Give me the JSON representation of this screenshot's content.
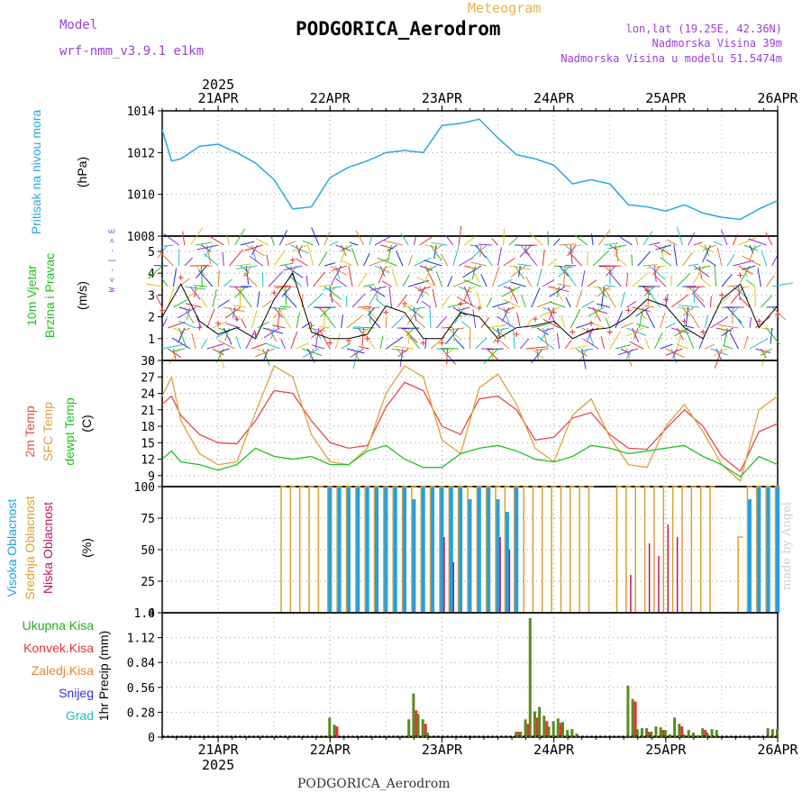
{
  "header": {
    "model_label": "Model",
    "model_name": "wrf-nmm_v3.9.1 e1km",
    "meteogram": "Meteogram",
    "station": "PODGORICA_Aerodrom",
    "lonlat": "lon,lat (19.25E, 42.36N)",
    "altitude": "Nadmorska Visina 39m",
    "model_altitude": "Nadmorska Visina u modelu 51.5474m"
  },
  "footer": {
    "station": "PODGORICA_Aerodrom",
    "credit": "made by Angel"
  },
  "time_axis": {
    "year": "2025",
    "days": [
      "21APR",
      "22APR",
      "23APR",
      "24APR",
      "25APR",
      "26APR"
    ],
    "start_hour": 12,
    "end_hour": 144
  },
  "panel_labels": {
    "pressure": {
      "title": "Pritisak na nivou mora",
      "unit": "(hPa)"
    },
    "wind": {
      "title1": "10m Vjetar",
      "title2": "Brzina i Pravac",
      "unit": "(m/s)",
      "compass": "W  < - | - >  E"
    },
    "temp": {
      "t1": "2m Temp",
      "t2": "SFC Temp",
      "t3": "dewpt Temp",
      "unit": "(C)"
    },
    "cloud": {
      "c1": "Visoka Oblacnost",
      "c2": "Srednja Oblacnost",
      "c3": "Niska Oblacnost",
      "unit": "(%)"
    },
    "precip": {
      "title": "1hr Precip (mm)",
      "legend": [
        "Ukupna Kisa",
        "Konvek.Kisa",
        "Zaledj.Kisa",
        "Snijeg",
        "Grad"
      ]
    }
  },
  "colors": {
    "pressure": "#28a8e0",
    "wind_speed": "#000000",
    "wind_gust": "#e83030",
    "t2m": "#e84848",
    "tsfc": "#e0a040",
    "dewpt": "#20c020",
    "cloud_high": "#20a0e8",
    "cloud_mid": "#d8a030",
    "cloud_low": "#c01060",
    "precip_total": "#5a8a20",
    "precip_conv": "#e83030",
    "leg_total": "#20b020",
    "leg_conv": "#e83030",
    "leg_frz": "#f08030",
    "leg_snow": "#3030e0",
    "leg_grad": "#20c0c0"
  },
  "chart_data": [
    {
      "type": "line",
      "title": "",
      "ylabel": "Pritisak na nivou mora (hPa)",
      "ylim": [
        1008,
        1014
      ],
      "yticks": [
        1008,
        1010,
        1012,
        1014
      ],
      "x_hours": [
        12,
        14,
        16,
        18,
        20,
        24,
        28,
        32,
        36,
        40,
        44,
        48,
        52,
        56,
        60,
        64,
        68,
        72,
        76,
        80,
        84,
        88,
        92,
        96,
        100,
        104,
        108,
        112,
        116,
        120,
        124,
        128,
        132,
        136,
        140,
        144
      ],
      "values": [
        1013.1,
        1011.6,
        1011.7,
        1012.0,
        1012.3,
        1012.4,
        1012.0,
        1011.5,
        1010.7,
        1009.3,
        1009.4,
        1010.8,
        1011.3,
        1011.6,
        1012.0,
        1012.1,
        1012.0,
        1013.3,
        1013.4,
        1013.6,
        1012.7,
        1011.9,
        1011.7,
        1011.4,
        1010.5,
        1010.7,
        1010.5,
        1009.5,
        1009.4,
        1009.2,
        1009.5,
        1009.1,
        1008.9,
        1008.8,
        1009.3,
        1009.7
      ]
    },
    {
      "type": "line",
      "title": "",
      "ylabel": "10m Vjetar Brzina i Pravac (m/s)",
      "ylim": [
        0,
        5.7
      ],
      "yticks": [
        0,
        1,
        2,
        3,
        4,
        5
      ],
      "x_hours": [
        12,
        16,
        20,
        24,
        28,
        32,
        36,
        40,
        44,
        48,
        52,
        56,
        60,
        64,
        68,
        72,
        76,
        80,
        84,
        88,
        92,
        96,
        100,
        104,
        108,
        112,
        116,
        120,
        124,
        128,
        132,
        136,
        140,
        144
      ],
      "series": [
        {
          "name": "speed",
          "values": [
            2.0,
            3.5,
            1.8,
            1.2,
            1.5,
            1.0,
            2.8,
            4.0,
            1.3,
            1.0,
            1.0,
            1.2,
            2.5,
            2.2,
            1.0,
            1.0,
            2.2,
            2.0,
            1.0,
            1.5,
            1.6,
            1.8,
            1.0,
            1.4,
            1.5,
            2.0,
            2.8,
            2.5,
            1.5,
            1.0,
            2.8,
            3.5,
            1.5,
            2.5
          ]
        },
        {
          "name": "gust",
          "values": [
            2.3,
            3.8,
            1.5,
            1.7,
            1.9,
            1.2,
            3.1,
            4.6,
            1.6,
            0.8,
            0.9,
            1.0,
            2.2,
            2.6,
            0.8,
            0.8,
            2.6,
            2.4,
            0.9,
            1.2,
            1.9,
            2.2,
            1.3,
            1.7,
            1.3,
            2.3,
            3.2,
            2.8,
            1.8,
            1.3,
            3.0,
            3.9,
            1.8,
            2.1
          ]
        }
      ],
      "arrow_colors": [
        "#2030e0",
        "#20c020",
        "#e0c020",
        "#e83030",
        "#9030d0",
        "#20c0c0",
        "#e08030"
      ]
    },
    {
      "type": "line",
      "title": "",
      "ylabel": "2m Temp / SFC Temp / dewpt Temp (C)",
      "ylim": [
        7,
        30
      ],
      "yticks": [
        9,
        12,
        15,
        18,
        21,
        24,
        27,
        30
      ],
      "x_hours": [
        12,
        14,
        16,
        20,
        24,
        28,
        32,
        36,
        40,
        44,
        48,
        52,
        56,
        60,
        64,
        68,
        72,
        76,
        80,
        84,
        88,
        92,
        96,
        100,
        104,
        108,
        112,
        116,
        120,
        124,
        128,
        132,
        136,
        140,
        144
      ],
      "series": [
        {
          "name": "2m Temp",
          "values": [
            22.0,
            23.5,
            20.0,
            16.5,
            15.0,
            14.8,
            19.0,
            24.5,
            24.0,
            19.0,
            15.0,
            14.0,
            14.5,
            21.5,
            26.0,
            24.5,
            18.0,
            16.5,
            23.0,
            23.5,
            21.0,
            15.5,
            16.0,
            19.5,
            20.5,
            16.5,
            14.0,
            13.8,
            17.5,
            21.0,
            18.0,
            12.5,
            9.8,
            17.0,
            18.5
          ]
        },
        {
          "name": "SFC Temp",
          "values": [
            23.5,
            27.0,
            19.0,
            13.0,
            11.0,
            11.5,
            20.5,
            29.0,
            27.0,
            16.5,
            11.5,
            11.0,
            14.0,
            24.0,
            29.0,
            27.0,
            15.5,
            13.0,
            25.0,
            27.5,
            22.0,
            14.0,
            11.5,
            20.0,
            23.0,
            16.0,
            11.0,
            10.5,
            18.0,
            22.0,
            17.0,
            11.0,
            8.0,
            21.0,
            23.5
          ]
        },
        {
          "name": "dewpt Temp",
          "values": [
            12.0,
            13.5,
            11.5,
            11.0,
            10.0,
            11.0,
            14.0,
            12.5,
            12.0,
            12.5,
            11.0,
            11.0,
            13.5,
            14.5,
            12.0,
            10.5,
            10.5,
            13.0,
            14.0,
            14.5,
            13.5,
            12.0,
            11.5,
            12.5,
            14.5,
            14.0,
            13.0,
            13.5,
            14.0,
            14.5,
            12.5,
            11.0,
            8.8,
            12.5,
            11.0
          ]
        }
      ]
    },
    {
      "type": "bar",
      "title": "",
      "ylabel": "Visoka / Srednja / Niska Oblacnost (%)",
      "ylim": [
        0,
        100
      ],
      "yticks": [
        0,
        25,
        50,
        75,
        100
      ],
      "x_hours": [
        38,
        40,
        42,
        44,
        46,
        48,
        50,
        52,
        54,
        56,
        58,
        60,
        62,
        64,
        66,
        68,
        70,
        72,
        74,
        76,
        78,
        80,
        82,
        84,
        86,
        88,
        90,
        92,
        94,
        96,
        98,
        100,
        102,
        104,
        106,
        108,
        110,
        112,
        114,
        116,
        118,
        120,
        122,
        124,
        126,
        128,
        130,
        132,
        134,
        136,
        138,
        140,
        142,
        144
      ],
      "series": [
        {
          "name": "Visoka Oblacnost",
          "values": [
            0,
            0,
            0,
            0,
            0,
            100,
            100,
            100,
            100,
            100,
            100,
            100,
            100,
            100,
            90,
            100,
            100,
            100,
            100,
            100,
            90,
            100,
            100,
            90,
            80,
            100,
            0,
            0,
            0,
            0,
            0,
            0,
            0,
            0,
            0,
            0,
            0,
            0,
            0,
            0,
            0,
            0,
            0,
            0,
            0,
            0,
            0,
            0,
            0,
            0,
            90,
            100,
            100,
            100
          ]
        },
        {
          "name": "Srednja Oblacnost",
          "values": [
            100,
            100,
            100,
            100,
            100,
            100,
            100,
            100,
            100,
            100,
            100,
            100,
            100,
            100,
            100,
            100,
            100,
            100,
            100,
            100,
            100,
            100,
            100,
            100,
            100,
            100,
            100,
            100,
            100,
            100,
            100,
            100,
            100,
            100,
            0,
            0,
            100,
            100,
            100,
            100,
            100,
            100,
            100,
            100,
            100,
            100,
            100,
            0,
            0,
            60,
            100,
            100,
            100,
            100
          ]
        },
        {
          "name": "Niska Oblacnost",
          "values": [
            0,
            0,
            0,
            0,
            0,
            0,
            0,
            0,
            0,
            0,
            0,
            0,
            0,
            0,
            0,
            0,
            0,
            60,
            40,
            0,
            0,
            0,
            0,
            60,
            50,
            0,
            0,
            0,
            0,
            0,
            0,
            0,
            0,
            0,
            0,
            0,
            0,
            30,
            0,
            55,
            45,
            70,
            60,
            0,
            0,
            0,
            0,
            0,
            0,
            0,
            0,
            0,
            0,
            0
          ]
        }
      ]
    },
    {
      "type": "bar",
      "title": "",
      "ylabel": "1hr Precip (mm)",
      "ylim": [
        0,
        1.4
      ],
      "yticks": [
        0,
        0.28,
        0.56,
        0.84,
        1.12,
        1.4
      ],
      "x_hours": [
        48,
        49,
        65,
        66,
        67,
        68,
        69,
        70,
        88,
        89,
        90,
        91,
        92,
        93,
        94,
        95,
        96,
        97,
        98,
        99,
        100,
        101,
        112,
        113,
        114,
        115,
        116,
        117,
        118,
        119,
        120,
        121,
        122,
        123,
        124,
        125,
        126,
        127,
        128,
        129,
        130,
        131,
        132,
        133,
        142,
        143,
        144
      ],
      "series": [
        {
          "name": "Ukupna Kisa",
          "values": [
            0.22,
            0.14,
            0.2,
            0.49,
            0.26,
            0.2,
            0.05,
            0.0,
            0.06,
            0.06,
            0.2,
            1.34,
            0.29,
            0.34,
            0.24,
            0.12,
            0.18,
            0.21,
            0.17,
            0.08,
            0.09,
            0.04,
            0.58,
            0.43,
            0.09,
            0.1,
            0.1,
            0.06,
            0.12,
            0.11,
            0.08,
            0.03,
            0.22,
            0.15,
            0.03,
            0.08,
            0.05,
            0.02,
            0.1,
            0.05,
            0.09,
            0.08,
            0.0,
            0.0,
            0.1,
            0.09,
            0.09
          ]
        },
        {
          "name": "Konvek.Kisa",
          "values": [
            0.0,
            0.12,
            0.0,
            0.3,
            0.0,
            0.15,
            0.0,
            0.0,
            0.06,
            0.0,
            0.15,
            0.0,
            0.22,
            0.0,
            0.18,
            0.0,
            0.0,
            0.16,
            0.0,
            0.0,
            0.0,
            0.0,
            0.0,
            0.4,
            0.0,
            0.0,
            0.06,
            0.0,
            0.0,
            0.08,
            0.0,
            0.0,
            0.0,
            0.12,
            0.0,
            0.0,
            0.0,
            0.0,
            0.08,
            0.0,
            0.0,
            0.0,
            0.0,
            0.0,
            0.0,
            0.0,
            0.0
          ]
        }
      ]
    }
  ]
}
